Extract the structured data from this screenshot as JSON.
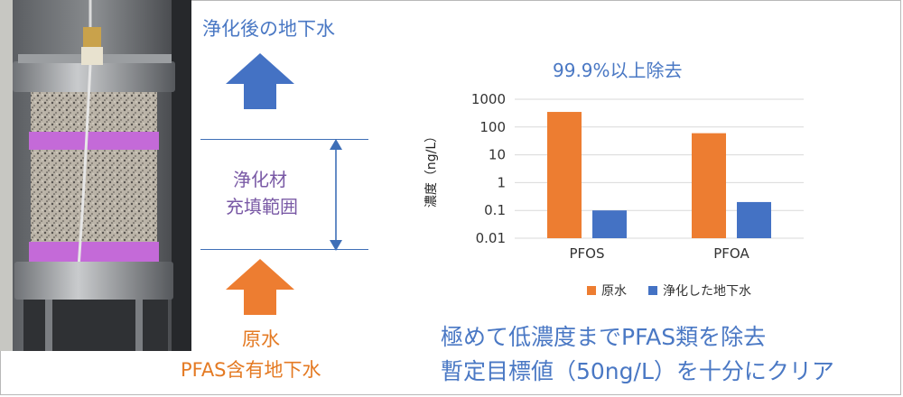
{
  "labels": {
    "purified_water": "浄化後の地下水",
    "media_line1": "浄化材",
    "media_line2": "充填範囲",
    "raw_water": "原水",
    "raw_water_sub": "PFAS含有地下水",
    "caption_line1": "極めて低濃度までPFAS類を除去",
    "caption_line2": "暫定目標値（50ng/L）を十分にクリア"
  },
  "colors": {
    "blue": "#4472c4",
    "orange": "#ed7d31",
    "purple_band": "#c46ad8"
  },
  "chart_data": {
    "type": "bar",
    "title": "99.9%以上除去",
    "ylabel": "濃度（ng/L）",
    "yscale": "log",
    "ylim": [
      0.01,
      1000
    ],
    "yticks": [
      "1000",
      "100",
      "10",
      "1",
      "0.1",
      "0.01"
    ],
    "categories": [
      "PFOS",
      "PFOA"
    ],
    "series": [
      {
        "name": "原水",
        "color": "#ed7d31",
        "values": [
          350,
          60
        ]
      },
      {
        "name": "浄化した地下水",
        "color": "#4472c4",
        "values": [
          0.1,
          0.2
        ]
      }
    ],
    "legend": "bottom",
    "grid": true
  }
}
